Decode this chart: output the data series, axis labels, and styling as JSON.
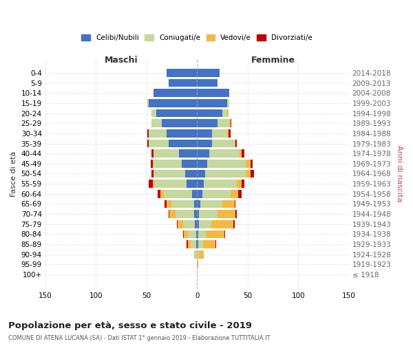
{
  "age_groups": [
    "100+",
    "95-99",
    "90-94",
    "85-89",
    "80-84",
    "75-79",
    "70-74",
    "65-69",
    "60-64",
    "55-59",
    "50-54",
    "45-49",
    "40-44",
    "35-39",
    "30-34",
    "25-29",
    "20-24",
    "15-19",
    "10-14",
    "5-9",
    "0-4"
  ],
  "birth_years": [
    "≤ 1918",
    "1919-1923",
    "1924-1928",
    "1929-1933",
    "1934-1938",
    "1939-1943",
    "1944-1948",
    "1949-1953",
    "1954-1958",
    "1959-1963",
    "1964-1968",
    "1969-1973",
    "1974-1978",
    "1979-1983",
    "1984-1988",
    "1989-1993",
    "1994-1998",
    "1999-2003",
    "2004-2008",
    "2009-2013",
    "2014-2018"
  ],
  "maschi": {
    "celibi": [
      0,
      0,
      0,
      1,
      1,
      2,
      3,
      3,
      5,
      10,
      12,
      15,
      18,
      28,
      30,
      35,
      40,
      48,
      43,
      28,
      30
    ],
    "coniugati": [
      0,
      0,
      2,
      5,
      8,
      12,
      18,
      22,
      28,
      32,
      30,
      28,
      25,
      20,
      18,
      10,
      5,
      1,
      0,
      0,
      0
    ],
    "vedovi": [
      0,
      0,
      1,
      3,
      4,
      5,
      6,
      5,
      3,
      2,
      1,
      1,
      0,
      0,
      0,
      0,
      0,
      0,
      0,
      0,
      0
    ],
    "divorziati": [
      0,
      0,
      0,
      1,
      1,
      1,
      1,
      2,
      3,
      4,
      2,
      2,
      2,
      1,
      1,
      0,
      0,
      0,
      0,
      0,
      0
    ]
  },
  "femmine": {
    "nubili": [
      0,
      0,
      0,
      1,
      1,
      2,
      2,
      3,
      5,
      7,
      8,
      10,
      12,
      15,
      15,
      20,
      25,
      30,
      32,
      20,
      22
    ],
    "coniugati": [
      0,
      0,
      2,
      5,
      8,
      12,
      18,
      22,
      28,
      32,
      40,
      38,
      30,
      22,
      15,
      12,
      5,
      2,
      0,
      0,
      0
    ],
    "vedovi": [
      0,
      1,
      5,
      12,
      18,
      22,
      18,
      12,
      8,
      5,
      5,
      5,
      2,
      1,
      1,
      1,
      1,
      0,
      0,
      0,
      0
    ],
    "divorziati": [
      0,
      0,
      0,
      1,
      1,
      1,
      1,
      1,
      3,
      3,
      3,
      2,
      3,
      1,
      2,
      1,
      0,
      0,
      0,
      0,
      0
    ]
  },
  "colors": {
    "celibi": "#4472C4",
    "coniugati": "#C5D89D",
    "vedovi": "#F4B942",
    "divorziati": "#C0000C"
  },
  "legend_labels": [
    "Celibi/Nubili",
    "Coniugati/e",
    "Vedovi/e",
    "Divorziati/e"
  ],
  "title": "Popolazione per età, sesso e stato civile - 2019",
  "subtitle": "COMUNE DI ATENA LUCANA (SA) - Dati ISTAT 1° gennaio 2019 - Elaborazione TUTTITALIA.IT",
  "xlabel_left": "Maschi",
  "xlabel_right": "Femmine",
  "ylabel_left": "Fasce di età",
  "ylabel_right": "Anni di nascita",
  "xlim": 150,
  "background_color": "#ffffff",
  "grid_color": "#cccccc"
}
